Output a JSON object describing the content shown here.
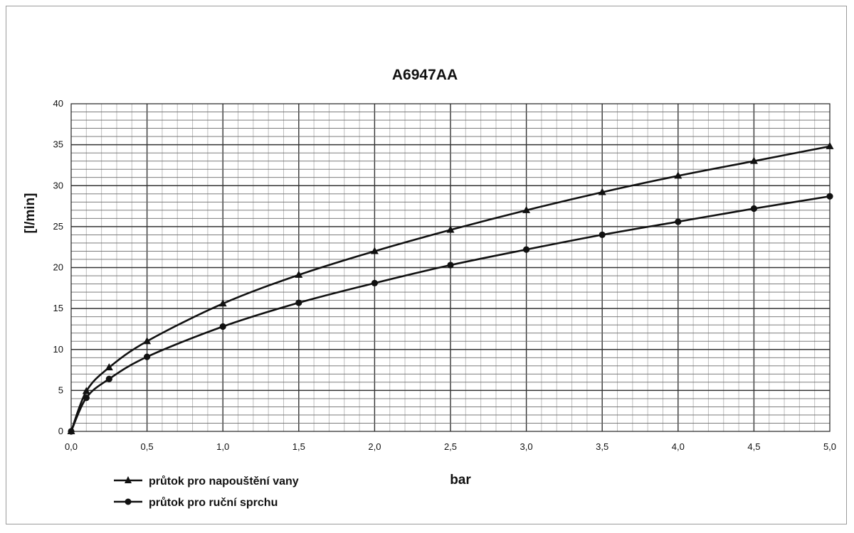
{
  "chart_data": {
    "type": "line",
    "title": "A6947AA",
    "xlabel": "bar",
    "ylabel": "[l/min]",
    "xlim": [
      0,
      5
    ],
    "ylim": [
      0,
      40
    ],
    "x_ticks": [
      "0,0",
      "0,5",
      "1,0",
      "1,5",
      "2,0",
      "2,5",
      "3,0",
      "3,5",
      "4,0",
      "4,5",
      "5,0"
    ],
    "y_ticks": [
      "0",
      "5",
      "10",
      "15",
      "20",
      "25",
      "30",
      "35",
      "40"
    ],
    "grid": true,
    "legend_position": "bottom-left",
    "series": [
      {
        "name": "průtok pro napouštění vany",
        "marker": "triangle",
        "color": "#111111",
        "x": [
          0,
          0.1,
          0.25,
          0.5,
          1.0,
          1.5,
          2.0,
          2.5,
          3.0,
          3.5,
          4.0,
          4.5,
          5.0
        ],
        "y": [
          0,
          4.9,
          7.8,
          11.0,
          15.6,
          19.1,
          22.0,
          24.6,
          27.0,
          29.2,
          31.2,
          33.0,
          34.8
        ]
      },
      {
        "name": "průtok pro ruční sprchu",
        "marker": "circle",
        "color": "#111111",
        "x": [
          0,
          0.1,
          0.25,
          0.5,
          1.0,
          1.5,
          2.0,
          2.5,
          3.0,
          3.5,
          4.0,
          4.5,
          5.0
        ],
        "y": [
          0,
          4.1,
          6.4,
          9.1,
          12.8,
          15.7,
          18.1,
          20.3,
          22.2,
          24.0,
          25.6,
          27.2,
          28.7
        ]
      }
    ]
  }
}
